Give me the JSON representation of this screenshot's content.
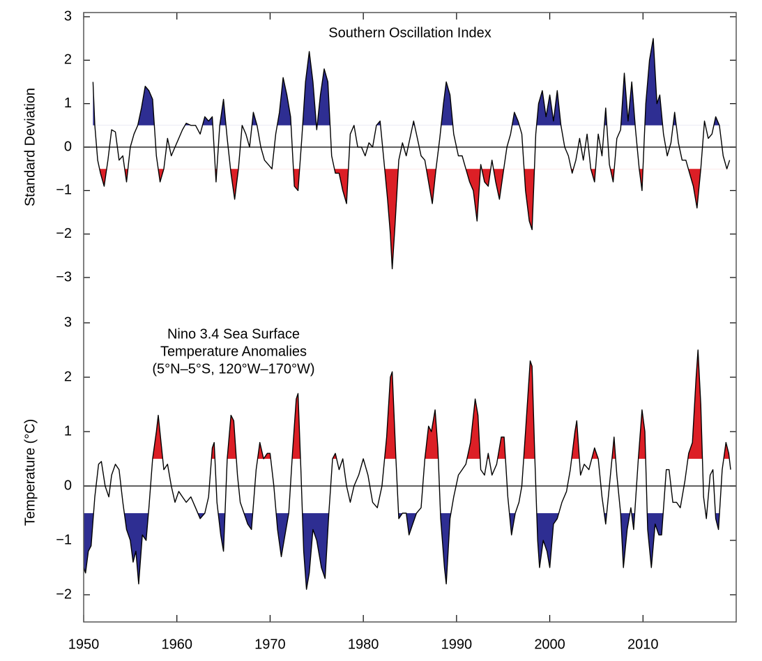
{
  "chart_data": [
    {
      "type": "line",
      "title": "Southern Oscillation Index",
      "ylabel": "Standard Deviation",
      "xlim": [
        1950,
        2020
      ],
      "ylim": [
        -3,
        3
      ],
      "yticks": [
        {
          "value": -3,
          "label": "−3"
        },
        {
          "value": -2,
          "label": "−2"
        },
        {
          "value": -1,
          "label": "−1"
        },
        0,
        1,
        2,
        3
      ],
      "threshold": 0.5,
      "above_color": "#2e2e92",
      "below_color": "#dc1f26",
      "series": [
        {
          "color": "#000000",
          "x": [
            1951.0,
            1951.2,
            1951.5,
            1951.8,
            1952.2,
            1952.6,
            1953.0,
            1953.4,
            1953.8,
            1954.2,
            1954.6,
            1955.0,
            1955.4,
            1955.8,
            1956.2,
            1956.6,
            1957.0,
            1957.4,
            1957.8,
            1958.2,
            1958.6,
            1959.0,
            1959.4,
            1959.8,
            1960.2,
            1960.6,
            1961.0,
            1961.5,
            1962.0,
            1962.5,
            1963.0,
            1963.4,
            1963.8,
            1964.2,
            1964.6,
            1965.0,
            1965.4,
            1965.8,
            1966.2,
            1966.6,
            1967.0,
            1967.4,
            1967.8,
            1968.2,
            1968.6,
            1969.0,
            1969.4,
            1969.8,
            1970.2,
            1970.6,
            1971.0,
            1971.4,
            1971.8,
            1972.2,
            1972.6,
            1973.0,
            1973.4,
            1973.8,
            1974.2,
            1974.6,
            1975.0,
            1975.4,
            1975.8,
            1976.2,
            1976.6,
            1977.0,
            1977.4,
            1977.8,
            1978.2,
            1978.6,
            1979.0,
            1979.4,
            1979.8,
            1980.2,
            1980.6,
            1981.0,
            1981.4,
            1981.8,
            1982.2,
            1982.6,
            1982.9,
            1983.1,
            1983.4,
            1983.8,
            1984.2,
            1984.6,
            1985.0,
            1985.4,
            1985.8,
            1986.2,
            1986.6,
            1987.0,
            1987.4,
            1987.8,
            1988.2,
            1988.6,
            1988.9,
            1989.3,
            1989.7,
            1990.2,
            1990.6,
            1991.0,
            1991.4,
            1991.8,
            1992.2,
            1992.6,
            1993.0,
            1993.4,
            1993.8,
            1994.2,
            1994.6,
            1995.0,
            1995.4,
            1995.8,
            1996.2,
            1996.6,
            1997.0,
            1997.4,
            1997.8,
            1998.1,
            1998.5,
            1998.8,
            1999.2,
            1999.6,
            2000.0,
            2000.4,
            2000.8,
            2001.2,
            2001.6,
            2002.0,
            2002.4,
            2002.8,
            2003.2,
            2003.6,
            2004.0,
            2004.4,
            2004.8,
            2005.2,
            2005.6,
            2006.0,
            2006.4,
            2006.8,
            2007.2,
            2007.6,
            2008.0,
            2008.4,
            2008.8,
            2009.2,
            2009.6,
            2009.9,
            2010.3,
            2010.7,
            2011.1,
            2011.5,
            2011.8,
            2012.2,
            2012.6,
            2013.0,
            2013.4,
            2013.8,
            2014.2,
            2014.6,
            2015.0,
            2015.4,
            2015.8,
            2016.2,
            2016.6,
            2017.0,
            2017.4,
            2017.8,
            2018.2,
            2018.6,
            2019.0,
            2019.3
          ],
          "values": [
            1.5,
            0.5,
            -0.3,
            -0.6,
            -0.9,
            -0.3,
            0.4,
            0.35,
            -0.3,
            -0.2,
            -0.8,
            0.0,
            0.3,
            0.5,
            0.9,
            1.4,
            1.3,
            1.1,
            -0.2,
            -0.8,
            -0.5,
            0.2,
            -0.2,
            0.0,
            0.2,
            0.4,
            0.55,
            0.5,
            0.5,
            0.3,
            0.7,
            0.6,
            0.7,
            -0.8,
            0.5,
            1.1,
            0.2,
            -0.6,
            -1.2,
            -0.5,
            0.5,
            0.3,
            0.0,
            0.8,
            0.5,
            0.0,
            -0.3,
            -0.4,
            -0.5,
            0.3,
            0.8,
            1.6,
            1.2,
            0.7,
            -0.9,
            -1.0,
            0.2,
            1.5,
            2.2,
            1.5,
            0.4,
            1.2,
            1.8,
            1.5,
            -0.2,
            -0.6,
            -0.6,
            -1.0,
            -1.3,
            0.3,
            0.5,
            0.0,
            0.0,
            -0.2,
            0.1,
            0.0,
            0.5,
            0.6,
            -0.3,
            -1.2,
            -2.0,
            -2.8,
            -1.8,
            -0.3,
            0.1,
            -0.2,
            0.2,
            0.6,
            0.2,
            -0.2,
            -0.3,
            -0.8,
            -1.3,
            -0.5,
            0.2,
            1.0,
            1.5,
            1.2,
            0.3,
            -0.2,
            -0.2,
            -0.5,
            -0.8,
            -1.0,
            -1.7,
            -0.4,
            -0.8,
            -0.9,
            -0.3,
            -0.8,
            -1.2,
            -0.6,
            0.0,
            0.3,
            0.8,
            0.6,
            0.3,
            -1.0,
            -1.7,
            -1.9,
            0.3,
            1.0,
            1.3,
            0.7,
            1.2,
            0.6,
            1.3,
            0.5,
            0.0,
            -0.2,
            -0.6,
            -0.3,
            0.2,
            -0.3,
            0.3,
            -0.5,
            -0.8,
            0.3,
            -0.2,
            0.9,
            -0.4,
            -0.8,
            0.2,
            0.4,
            1.7,
            0.6,
            1.5,
            0.4,
            -0.5,
            -1.0,
            1.0,
            2.0,
            2.5,
            1.0,
            1.2,
            0.3,
            -0.2,
            0.1,
            0.8,
            0.1,
            -0.3,
            -0.3,
            -0.6,
            -0.9,
            -1.4,
            -0.5,
            0.6,
            0.2,
            0.3,
            0.7,
            0.5,
            -0.2,
            -0.5,
            -0.3
          ]
        }
      ]
    },
    {
      "type": "line",
      "title": [
        "Nino 3.4 Sea Surface",
        "Temperature Anomalies",
        "(5°N–5°S, 120°W–170°W)"
      ],
      "ylabel": "Temperature (°C)",
      "xlim": [
        1950,
        2020
      ],
      "ylim": [
        -2.5,
        3
      ],
      "xticks": [
        1950,
        1960,
        1970,
        1980,
        1990,
        2000,
        2010
      ],
      "yticks": [
        {
          "value": -2,
          "label": "−2"
        },
        {
          "value": -1,
          "label": "−1"
        },
        0,
        1,
        2,
        3
      ],
      "threshold": 0.5,
      "above_color": "#dc1f26",
      "below_color": "#2e2e92",
      "series": [
        {
          "color": "#000000",
          "x": [
            1950.0,
            1950.2,
            1950.5,
            1950.8,
            1951.2,
            1951.6,
            1951.9,
            1952.3,
            1952.7,
            1953.0,
            1953.4,
            1953.8,
            1954.2,
            1954.6,
            1955.0,
            1955.3,
            1955.6,
            1955.9,
            1956.3,
            1956.7,
            1957.0,
            1957.4,
            1957.8,
            1958.0,
            1958.3,
            1958.6,
            1959.0,
            1959.4,
            1959.8,
            1960.2,
            1960.6,
            1961.0,
            1961.5,
            1962.0,
            1962.5,
            1963.0,
            1963.4,
            1963.8,
            1964.0,
            1964.3,
            1964.7,
            1965.0,
            1965.4,
            1965.8,
            1966.1,
            1966.5,
            1966.8,
            1967.2,
            1967.6,
            1968.0,
            1968.5,
            1968.9,
            1969.3,
            1969.7,
            1970.0,
            1970.4,
            1970.8,
            1971.2,
            1971.6,
            1972.0,
            1972.4,
            1972.8,
            1973.0,
            1973.3,
            1973.6,
            1973.9,
            1974.2,
            1974.6,
            1975.0,
            1975.5,
            1975.9,
            1976.3,
            1976.7,
            1977.0,
            1977.4,
            1977.8,
            1978.2,
            1978.6,
            1979.0,
            1979.5,
            1980.0,
            1980.5,
            1981.0,
            1981.5,
            1982.0,
            1982.5,
            1982.9,
            1983.1,
            1983.5,
            1983.8,
            1984.2,
            1984.6,
            1984.9,
            1985.3,
            1985.7,
            1986.2,
            1986.6,
            1987.0,
            1987.3,
            1987.7,
            1988.0,
            1988.3,
            1988.7,
            1988.9,
            1989.3,
            1989.7,
            1990.2,
            1990.6,
            1991.0,
            1991.5,
            1992.0,
            1992.3,
            1992.6,
            1993.0,
            1993.4,
            1993.8,
            1994.3,
            1994.8,
            1995.1,
            1995.5,
            1995.9,
            1996.3,
            1996.7,
            1997.0,
            1997.4,
            1997.9,
            1998.1,
            1998.4,
            1998.7,
            1998.9,
            1999.3,
            1999.7,
            2000.0,
            2000.4,
            2000.8,
            2001.3,
            2001.8,
            2002.2,
            2002.7,
            2002.9,
            2003.3,
            2003.7,
            2004.2,
            2004.8,
            2005.2,
            2005.6,
            2006.0,
            2006.4,
            2006.9,
            2007.2,
            2007.6,
            2007.9,
            2008.3,
            2008.7,
            2009.0,
            2009.5,
            2009.9,
            2010.2,
            2010.5,
            2010.9,
            2011.3,
            2011.7,
            2012.0,
            2012.5,
            2012.8,
            2013.2,
            2013.6,
            2014.0,
            2014.5,
            2014.9,
            2015.3,
            2015.7,
            2015.9,
            2016.2,
            2016.5,
            2016.8,
            2017.2,
            2017.5,
            2017.8,
            2018.1,
            2018.5,
            2018.9,
            2019.2,
            2019.4
          ],
          "values": [
            -1.5,
            -1.6,
            -1.2,
            -1.1,
            -0.2,
            0.4,
            0.45,
            0.0,
            -0.2,
            0.2,
            0.4,
            0.3,
            -0.3,
            -0.8,
            -1.0,
            -1.4,
            -1.2,
            -1.8,
            -0.9,
            -1.0,
            -0.4,
            0.5,
            1.0,
            1.3,
            0.8,
            0.3,
            0.4,
            0.0,
            -0.3,
            -0.1,
            -0.2,
            -0.3,
            -0.2,
            -0.4,
            -0.6,
            -0.5,
            -0.2,
            0.7,
            0.8,
            -0.3,
            -0.9,
            -1.2,
            0.5,
            1.3,
            1.2,
            0.2,
            -0.3,
            -0.5,
            -0.7,
            -0.8,
            0.3,
            0.8,
            0.5,
            0.6,
            0.6,
            0.0,
            -0.8,
            -1.3,
            -0.9,
            -0.5,
            0.6,
            1.6,
            1.7,
            0.3,
            -1.2,
            -1.9,
            -1.6,
            -0.8,
            -1.0,
            -1.5,
            -1.7,
            -0.5,
            0.5,
            0.6,
            0.3,
            0.5,
            0.0,
            -0.3,
            0.0,
            0.2,
            0.5,
            0.2,
            -0.3,
            -0.4,
            0.0,
            0.9,
            2.0,
            2.1,
            0.5,
            -0.6,
            -0.5,
            -0.5,
            -0.9,
            -0.7,
            -0.5,
            -0.4,
            0.5,
            1.1,
            1.0,
            1.4,
            0.7,
            -0.6,
            -1.5,
            -1.8,
            -0.6,
            -0.2,
            0.2,
            0.3,
            0.4,
            0.8,
            1.6,
            1.3,
            0.3,
            0.2,
            0.6,
            0.2,
            0.4,
            0.9,
            0.9,
            -0.2,
            -0.9,
            -0.5,
            -0.3,
            0.0,
            1.0,
            2.3,
            2.2,
            0.5,
            -1.0,
            -1.5,
            -1.0,
            -1.2,
            -1.5,
            -0.7,
            -0.6,
            -0.3,
            -0.1,
            0.3,
            1.0,
            1.2,
            0.2,
            0.4,
            0.3,
            0.7,
            0.5,
            -0.2,
            -0.7,
            0.0,
            0.9,
            0.2,
            -0.5,
            -1.5,
            -0.8,
            -0.4,
            -0.8,
            0.5,
            1.4,
            1.0,
            -0.8,
            -1.5,
            -0.7,
            -0.9,
            -0.9,
            0.3,
            0.3,
            -0.3,
            -0.3,
            -0.4,
            0.1,
            0.6,
            0.8,
            2.0,
            2.5,
            1.5,
            -0.2,
            -0.6,
            0.2,
            0.3,
            -0.6,
            -0.8,
            0.3,
            0.8,
            0.6,
            0.3
          ]
        }
      ]
    }
  ]
}
